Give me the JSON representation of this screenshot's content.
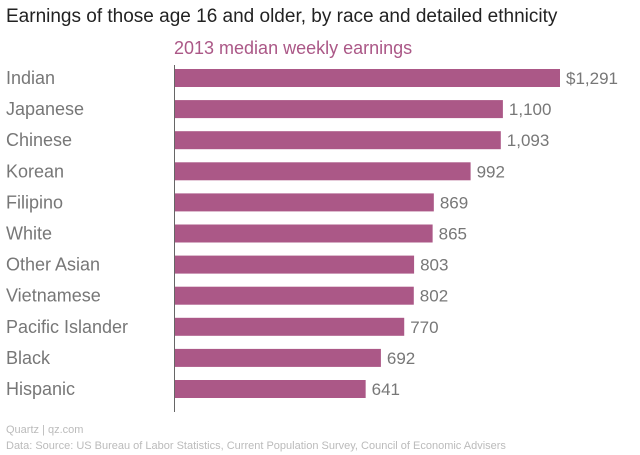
{
  "chart_data": {
    "type": "bar",
    "orientation": "horizontal",
    "title": "Earnings of those age 16 and older, by race and detailed ethnicity",
    "subtitle": "2013 median weekly earnings",
    "categories": [
      "Indian",
      "Japanese",
      "Chinese",
      "Korean",
      "Filipino",
      "White",
      "Other Asian",
      "Vietnamese",
      "Pacific Islander",
      "Black",
      "Hispanic"
    ],
    "values": [
      1291,
      1100,
      1093,
      992,
      869,
      865,
      803,
      802,
      770,
      692,
      641
    ],
    "value_labels": [
      "$1,291",
      "1,100",
      "1,093",
      "992",
      "869",
      "865",
      "803",
      "802",
      "770",
      "692",
      "641"
    ],
    "xlim": [
      0,
      1291
    ],
    "grid": false,
    "bar_color": "#ab5887"
  },
  "footer": {
    "source": "Quartz | qz.com",
    "data_source": "Data: Source: US Bureau of Labor Statistics, Current Population Survey, Council of Economic Advisers"
  },
  "colors": {
    "bar": "#ab5887",
    "subtitle": "#ab5887",
    "title": "#222222",
    "label": "#777777",
    "axis": "#666666"
  }
}
